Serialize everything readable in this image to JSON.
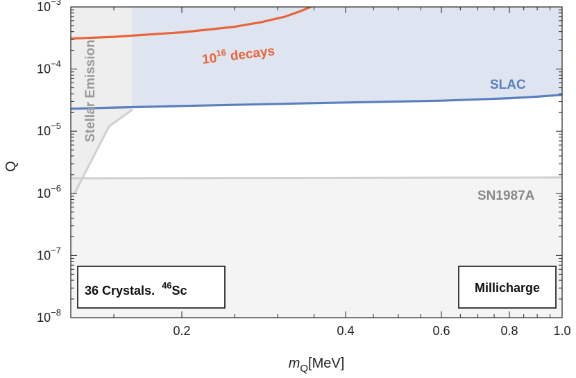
{
  "chart_data": {
    "type": "line",
    "title": "",
    "xlabel": {
      "main": "m",
      "sub": "Q",
      "unit": "[MeV]"
    },
    "ylabel": "Q",
    "x_scale": "log",
    "y_scale": "log",
    "xlim": [
      0.125,
      1.0
    ],
    "ylim": [
      1e-08,
      0.001
    ],
    "x_ticks": [
      {
        "value": 0.2,
        "label": "0.2"
      },
      {
        "value": 0.4,
        "label": "0.4"
      },
      {
        "value": 0.6,
        "label": "0.6"
      },
      {
        "value": 0.8,
        "label": "0.8"
      },
      {
        "value": 1.0,
        "label": "1.0"
      }
    ],
    "x_minor_ticks": [
      0.15,
      0.25,
      0.3,
      0.35,
      0.45,
      0.5,
      0.55,
      0.65,
      0.7,
      0.75,
      0.85,
      0.9,
      0.95
    ],
    "y_ticks": [
      {
        "value": 1e-08,
        "base": "10",
        "exp": "−8"
      },
      {
        "value": 1e-07,
        "base": "10",
        "exp": "−7"
      },
      {
        "value": 1e-06,
        "base": "10",
        "exp": "−6"
      },
      {
        "value": 1e-05,
        "base": "10",
        "exp": "−5"
      },
      {
        "value": 0.0001,
        "base": "10",
        "exp": "−4"
      },
      {
        "value": 0.001,
        "base": "10",
        "exp": "−3"
      }
    ],
    "series": [
      {
        "name": "SLAC",
        "color": "#5b80bd",
        "fill": "above",
        "fill_color": "#dfe5f0",
        "x": [
          0.125,
          0.15,
          0.2,
          0.3,
          0.4,
          0.5,
          0.6,
          0.7,
          0.8,
          0.9,
          1.0
        ],
        "y": [
          2.3e-05,
          2.4e-05,
          2.55e-05,
          2.75e-05,
          2.9e-05,
          3e-05,
          3.1e-05,
          3.25e-05,
          3.4e-05,
          3.6e-05,
          3.85e-05
        ]
      },
      {
        "name": "10^16 decays",
        "color": "#e8643a",
        "x": [
          0.125,
          0.15,
          0.2,
          0.25,
          0.28,
          0.31,
          0.33,
          0.345
        ],
        "y": [
          0.00031,
          0.00033,
          0.00039,
          0.00048,
          0.00057,
          0.0007,
          0.00085,
          0.001
        ]
      },
      {
        "name": "SN1987A",
        "color": "#d0d0d0",
        "fill": "below",
        "fill_color": "#f4f4f4",
        "x": [
          0.125,
          1.0
        ],
        "y": [
          1.75e-06,
          1.8e-06
        ]
      },
      {
        "name": "Stellar Emission",
        "color": "#d0d0d0",
        "fill": "left",
        "fill_color": "#eeeeee",
        "x": [
          0.127,
          0.147,
          0.162,
          0.162
        ],
        "y": [
          1e-06,
          1.2e-05,
          2.2e-05,
          0.001
        ]
      }
    ],
    "annotations": {
      "decays": {
        "base": "10",
        "exp": "16",
        "rest": " decays",
        "color": "#e8643a"
      },
      "slac": {
        "text": "SLAC",
        "color": "#5b80bd"
      },
      "sn": {
        "text": "SN1987A",
        "color": "#8a8a8a"
      },
      "stellar": {
        "text": "Stellar Emission",
        "color": "#9a9a9a"
      },
      "box_left": {
        "pre": "36 Crystals.  ",
        "exp": "46",
        "rest": "Sc"
      },
      "box_right": {
        "text": "Millicharge"
      }
    }
  }
}
